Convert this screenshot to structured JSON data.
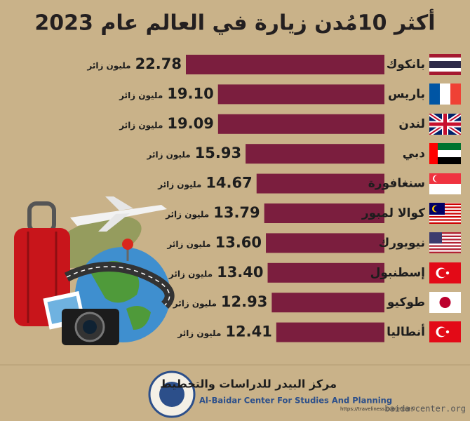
{
  "chart_data": {
    "type": "bar",
    "orientation": "horizontal",
    "title": "أكثر 10مُدن زيارة في العالم عام 2023",
    "categories": [
      "بانكوك",
      "باريس",
      "لندن",
      "دبي",
      "سنغافورة",
      "كوالا لمبور",
      "نيويورك",
      "إسطنبول",
      "طوكيو",
      "أنطاليا"
    ],
    "values": [
      22.78,
      19.1,
      19.09,
      15.93,
      14.67,
      13.79,
      13.6,
      13.4,
      12.93,
      12.41
    ],
    "value_labels": [
      "22.78",
      "19.10",
      "19.09",
      "15.93",
      "14.67",
      "13.79",
      "13.60",
      "13.40",
      "12.93",
      "12.41"
    ],
    "unit": "مليون زائر",
    "color": "#7b1e3e"
  },
  "footer": {
    "org_ar": "مركز البيدر للدراسات والتخطيط",
    "org_en": "Al-Baidar Center For Studies And Planning",
    "source": "https://traveliness.com/most-v",
    "site": "baidarcenter.org"
  }
}
